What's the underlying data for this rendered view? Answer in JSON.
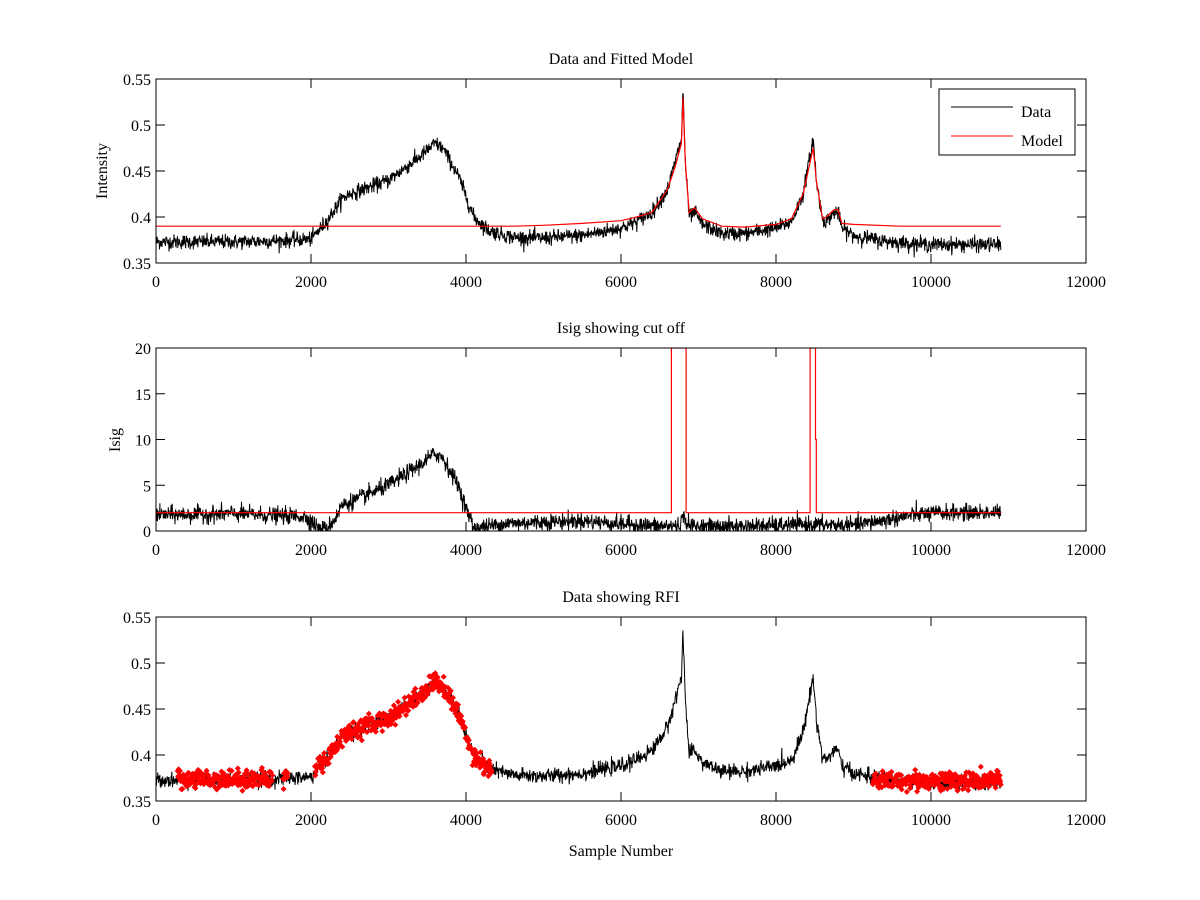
{
  "chart_data": [
    {
      "type": "line",
      "title": "Data and Fitted Model",
      "xlabel": "",
      "ylabel": "Intensity",
      "xlim": [
        0,
        12000
      ],
      "ylim": [
        0.35,
        0.55
      ],
      "xticks": [
        "0",
        "2000",
        "4000",
        "6000",
        "8000",
        "10000",
        "12000"
      ],
      "yticks": [
        "0.35",
        "0.4",
        "0.45",
        "0.5",
        "0.55"
      ],
      "grid": false,
      "legend": {
        "position": "top-right",
        "entries": [
          "Data",
          "Model"
        ]
      },
      "series": [
        {
          "name": "Data",
          "color": "#000000",
          "style": "noisy-line",
          "noise": 0.004,
          "x": [
            0,
            500,
            1000,
            1500,
            2000,
            2200,
            2400,
            2500,
            3000,
            3400,
            3600,
            3700,
            3900,
            4100,
            4300,
            4600,
            5000,
            5500,
            6000,
            6200,
            6400,
            6600,
            6700,
            6780,
            6800,
            6830,
            6880,
            6950,
            7050,
            7300,
            7600,
            8000,
            8200,
            8350,
            8480,
            8520,
            8600,
            8650,
            8750,
            8800,
            8850,
            9000,
            9300,
            9600,
            10000,
            10500,
            10900
          ],
          "y": [
            0.373,
            0.373,
            0.373,
            0.374,
            0.376,
            0.395,
            0.42,
            0.425,
            0.44,
            0.465,
            0.48,
            0.475,
            0.445,
            0.4,
            0.385,
            0.378,
            0.377,
            0.38,
            0.388,
            0.395,
            0.405,
            0.43,
            0.46,
            0.485,
            0.54,
            0.46,
            0.4,
            0.405,
            0.392,
            0.382,
            0.382,
            0.388,
            0.395,
            0.425,
            0.485,
            0.44,
            0.398,
            0.395,
            0.405,
            0.405,
            0.388,
            0.38,
            0.375,
            0.372,
            0.37,
            0.37,
            0.37
          ]
        },
        {
          "name": "Model",
          "color": "#ff0000",
          "style": "line",
          "x": [
            0,
            4300,
            4600,
            5000,
            5500,
            6000,
            6200,
            6400,
            6600,
            6700,
            6780,
            6800,
            6830,
            6880,
            6950,
            7050,
            7300,
            7600,
            8000,
            8200,
            8350,
            8480,
            8520,
            8600,
            8650,
            8750,
            8800,
            8850,
            9000,
            9600,
            10900
          ],
          "y": [
            0.39,
            0.39,
            0.39,
            0.391,
            0.393,
            0.396,
            0.4,
            0.405,
            0.43,
            0.455,
            0.48,
            0.53,
            0.46,
            0.405,
            0.41,
            0.398,
            0.39,
            0.389,
            0.392,
            0.398,
            0.425,
            0.475,
            0.44,
            0.398,
            0.4,
            0.408,
            0.408,
            0.393,
            0.392,
            0.39,
            0.39
          ]
        }
      ]
    },
    {
      "type": "line",
      "title": "Isig showing cut off",
      "xlabel": "",
      "ylabel": "Isig",
      "xlim": [
        0,
        12000
      ],
      "ylim": [
        0,
        20
      ],
      "xticks": [
        "0",
        "2000",
        "4000",
        "6000",
        "8000",
        "10000",
        "12000"
      ],
      "yticks": [
        "0",
        "5",
        "10",
        "15",
        "20"
      ],
      "grid": false,
      "series": [
        {
          "name": "Isig",
          "color": "#000000",
          "style": "noisy-line",
          "noise": 0.45,
          "x": [
            0,
            500,
            1000,
            1500,
            1900,
            2000,
            2100,
            2200,
            2300,
            2400,
            2600,
            3000,
            3400,
            3600,
            3700,
            3900,
            4000,
            4100,
            4200,
            4500,
            5000,
            5500,
            6000,
            6500,
            6750,
            6800,
            6900,
            7500,
            8000,
            8500,
            9000,
            9400,
            9800,
            10200,
            10900
          ],
          "y": [
            1.8,
            1.8,
            1.9,
            1.7,
            1.6,
            1.2,
            0.2,
            0.3,
            1.2,
            2.8,
            3.5,
            5.0,
            7.2,
            8.5,
            8.0,
            5.0,
            2.5,
            0.4,
            0.4,
            0.8,
            1.0,
            1.1,
            0.8,
            0.5,
            0.6,
            1.5,
            0.5,
            0.5,
            0.6,
            0.7,
            0.6,
            1.2,
            1.8,
            2.0,
            2.0
          ]
        },
        {
          "name": "Cut off",
          "color": "#ff0000",
          "style": "line",
          "x": [
            0,
            6650,
            6650,
            6840,
            6840,
            8440,
            8440,
            8510,
            8510,
            8520,
            8520,
            10900
          ],
          "y": [
            2,
            2,
            20,
            20,
            2,
            2,
            20,
            20,
            10,
            10,
            2,
            2
          ]
        }
      ]
    },
    {
      "type": "line",
      "title": "Data showing RFI",
      "xlabel": "Sample Number",
      "ylabel": "",
      "xlim": [
        0,
        12000
      ],
      "ylim": [
        0.35,
        0.55
      ],
      "xticks": [
        "0",
        "2000",
        "4000",
        "6000",
        "8000",
        "10000",
        "12000"
      ],
      "yticks": [
        "0.35",
        "0.4",
        "0.45",
        "0.5",
        "0.55"
      ],
      "grid": false,
      "series": [
        {
          "name": "Data",
          "color": "#000000",
          "style": "noisy-line",
          "noise": 0.004,
          "x": [
            0,
            500,
            1000,
            1500,
            2000,
            2200,
            2400,
            2500,
            3000,
            3400,
            3600,
            3700,
            3900,
            4100,
            4300,
            4600,
            5000,
            5500,
            6000,
            6200,
            6400,
            6600,
            6700,
            6780,
            6800,
            6830,
            6880,
            6950,
            7050,
            7300,
            7600,
            8000,
            8200,
            8350,
            8480,
            8520,
            8600,
            8650,
            8750,
            8800,
            8850,
            9000,
            9300,
            9600,
            10000,
            10500,
            10900
          ],
          "y": [
            0.373,
            0.373,
            0.373,
            0.374,
            0.376,
            0.395,
            0.42,
            0.425,
            0.44,
            0.465,
            0.48,
            0.475,
            0.445,
            0.4,
            0.385,
            0.378,
            0.377,
            0.38,
            0.388,
            0.395,
            0.405,
            0.43,
            0.46,
            0.485,
            0.54,
            0.46,
            0.4,
            0.405,
            0.392,
            0.382,
            0.382,
            0.388,
            0.395,
            0.425,
            0.485,
            0.44,
            0.398,
            0.395,
            0.405,
            0.405,
            0.388,
            0.38,
            0.375,
            0.372,
            0.37,
            0.37,
            0.37
          ]
        },
        {
          "name": "RFI",
          "color": "#ff0000",
          "style": "markers",
          "noise": 0.005,
          "segments": [
            {
              "x": [
                280,
                1500
              ],
              "y": [
                0.374,
                0.374
              ]
            },
            {
              "x": [
                1640,
                1700
              ],
              "y": [
                0.374,
                0.374
              ]
            },
            {
              "x": [
                2050,
                2200,
                2400,
                2500,
                3000,
                3400,
                3600,
                3700,
                3900,
                4100,
                4330
              ],
              "y": [
                0.388,
                0.395,
                0.42,
                0.425,
                0.44,
                0.465,
                0.48,
                0.475,
                0.445,
                0.4,
                0.382
              ]
            },
            {
              "x": [
                9250,
                10900
              ],
              "y": [
                0.372,
                0.372
              ]
            }
          ]
        }
      ]
    }
  ]
}
